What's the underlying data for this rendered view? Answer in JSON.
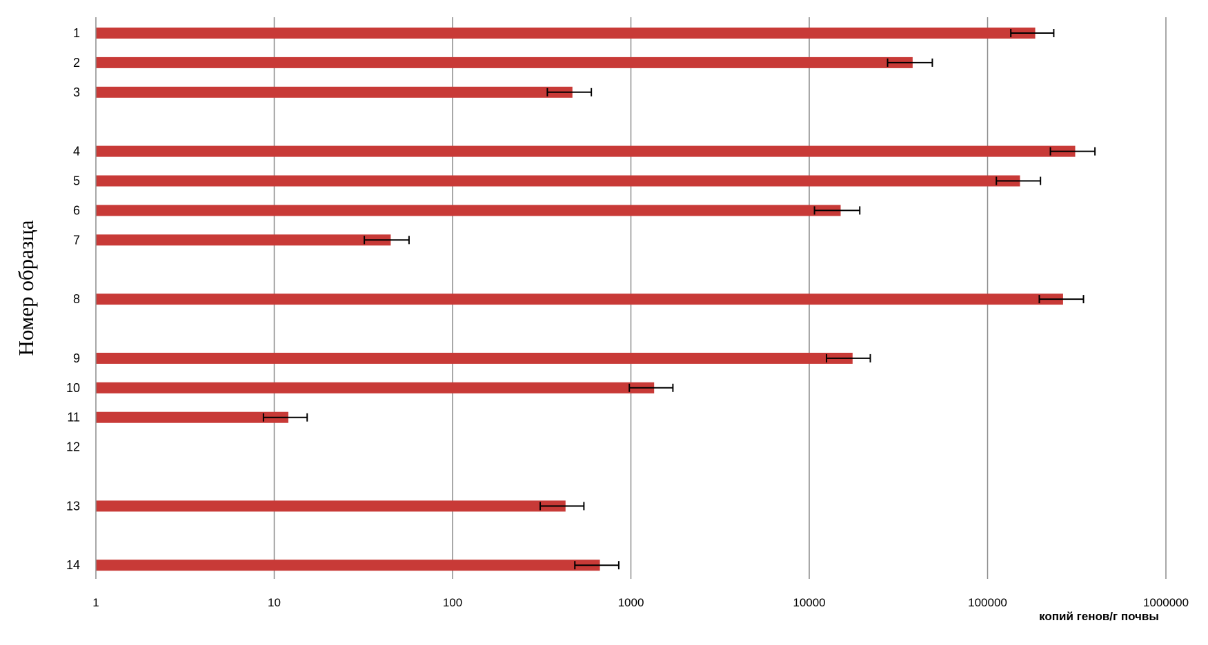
{
  "chart_data": {
    "type": "bar",
    "orientation": "horizontal",
    "x_scale": "log",
    "xlim": [
      1,
      1000000
    ],
    "x_ticks": [
      "1",
      "10",
      "100",
      "1000",
      "10000",
      "100000",
      "1000000"
    ],
    "xlabel": "копий генов/г почвы",
    "ylabel": "Номер образца",
    "grid": true,
    "legend": "none",
    "bar_color": "#c83a37",
    "rows": [
      {
        "label": "1",
        "value": 185000,
        "err_low": 135000,
        "err_high": 235000
      },
      {
        "label": "2",
        "value": 38000,
        "err_low": 27500,
        "err_high": 49000
      },
      {
        "label": "3",
        "value": 470,
        "err_low": 340,
        "err_high": 600
      },
      {
        "label": "",
        "value": null
      },
      {
        "label": "4",
        "value": 310000,
        "err_low": 225000,
        "err_high": 400000
      },
      {
        "label": "5",
        "value": 152000,
        "err_low": 112000,
        "err_high": 198000
      },
      {
        "label": "6",
        "value": 15000,
        "err_low": 10700,
        "err_high": 19200
      },
      {
        "label": "7",
        "value": 45,
        "err_low": 32,
        "err_high": 57
      },
      {
        "label": "",
        "value": null
      },
      {
        "label": "8",
        "value": 265000,
        "err_low": 195000,
        "err_high": 345000
      },
      {
        "label": "",
        "value": null
      },
      {
        "label": "9",
        "value": 17500,
        "err_low": 12500,
        "err_high": 22000
      },
      {
        "label": "10",
        "value": 1350,
        "err_low": 980,
        "err_high": 1720
      },
      {
        "label": "11",
        "value": 12,
        "err_low": 8.7,
        "err_high": 15.3
      },
      {
        "label": "12",
        "value": null
      },
      {
        "label": "",
        "value": null
      },
      {
        "label": "13",
        "value": 430,
        "err_low": 310,
        "err_high": 545
      },
      {
        "label": "",
        "value": null
      },
      {
        "label": "14",
        "value": 670,
        "err_low": 485,
        "err_high": 855
      }
    ]
  }
}
